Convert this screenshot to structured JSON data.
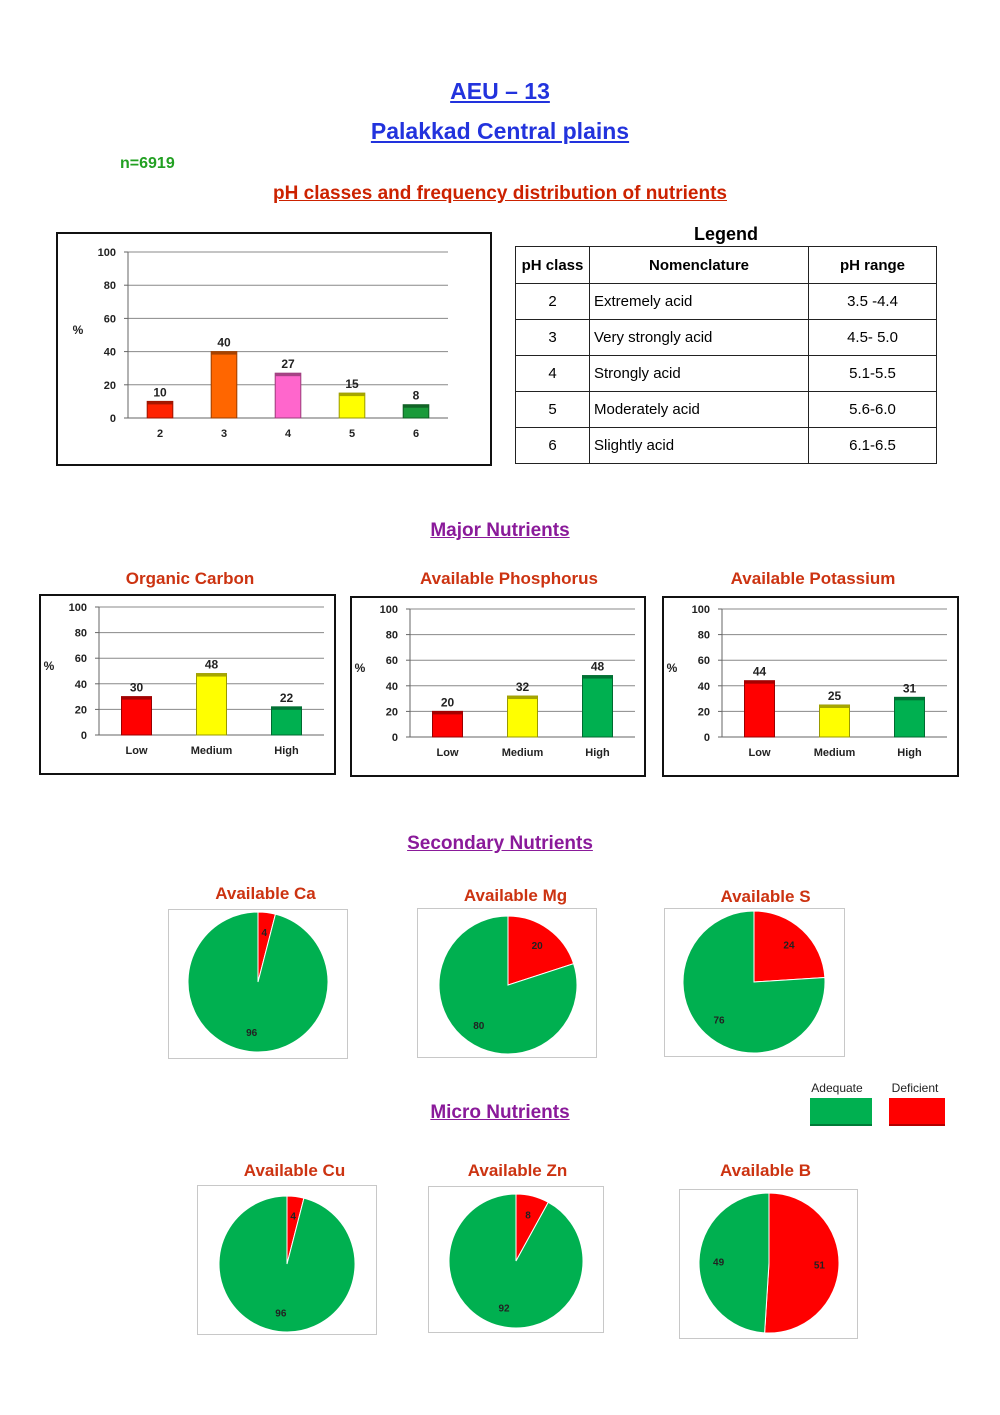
{
  "header": {
    "title": "AEU – 13",
    "subtitle": "Palakkad Central plains",
    "n_label": "n=6919",
    "section_ph": "pH classes and frequency distribution of nutrients"
  },
  "legend": {
    "title": "Legend",
    "headers": [
      "pH class",
      "Nomenclature",
      "pH range"
    ],
    "rows": [
      {
        "cls": "2",
        "name": "Extremely acid",
        "range": "3.5 -4.4"
      },
      {
        "cls": "3",
        "name": "Very strongly acid",
        "range": "4.5- 5.0"
      },
      {
        "cls": "4",
        "name": "Strongly acid",
        "range": "5.1-5.5"
      },
      {
        "cls": "5",
        "name": "Moderately acid",
        "range": "5.6-6.0"
      },
      {
        "cls": "6",
        "name": "Slightly acid",
        "range": "6.1-6.5"
      }
    ]
  },
  "sections": {
    "major": "Major Nutrients",
    "secondary": "Secondary Nutrients",
    "micro": "Micro Nutrients"
  },
  "pie_key": {
    "adequate_label": "Adequate",
    "deficient_label": "Deficient",
    "adequate_color": "#00b050",
    "deficient_color": "#ff0000"
  },
  "chart_data": [
    {
      "id": "ph",
      "type": "bar",
      "title": "",
      "ylabel": "%",
      "ylim": [
        0,
        100
      ],
      "yticks": [
        0,
        20,
        40,
        60,
        80,
        100
      ],
      "categories": [
        "2",
        "3",
        "4",
        "5",
        "6"
      ],
      "values": [
        10,
        40,
        27,
        15,
        8
      ],
      "colors": [
        "#ff2200",
        "#ff6600",
        "#ff66cc",
        "#ffff00",
        "#1a9a3a"
      ],
      "grid": true
    },
    {
      "id": "oc",
      "type": "bar",
      "title": "Organic Carbon",
      "ylabel": "%",
      "ylim": [
        0,
        100
      ],
      "yticks": [
        0,
        20,
        40,
        60,
        80,
        100
      ],
      "categories": [
        "Low",
        "Medium",
        "High"
      ],
      "values": [
        30,
        48,
        22
      ],
      "colors": [
        "#ff0000",
        "#ffff00",
        "#00b050"
      ],
      "grid": true
    },
    {
      "id": "p",
      "type": "bar",
      "title": "Available Phosphorus",
      "ylabel": "%",
      "ylim": [
        0,
        100
      ],
      "yticks": [
        0,
        20,
        40,
        60,
        80,
        100
      ],
      "categories": [
        "Low",
        "Medium",
        "High"
      ],
      "values": [
        20,
        32,
        48
      ],
      "colors": [
        "#ff0000",
        "#ffff00",
        "#00b050"
      ],
      "grid": true
    },
    {
      "id": "k",
      "type": "bar",
      "title": "Available Potassium",
      "ylabel": "%",
      "ylim": [
        0,
        100
      ],
      "yticks": [
        0,
        20,
        40,
        60,
        80,
        100
      ],
      "categories": [
        "Low",
        "Medium",
        "High"
      ],
      "values": [
        44,
        25,
        31
      ],
      "colors": [
        "#ff0000",
        "#ffff00",
        "#00b050"
      ],
      "grid": true
    },
    {
      "id": "ca",
      "type": "pie",
      "title": "Available Ca",
      "deficient": 4,
      "adequate": 96
    },
    {
      "id": "mg",
      "type": "pie",
      "title": "Available Mg",
      "deficient": 20,
      "adequate": 80
    },
    {
      "id": "s",
      "type": "pie",
      "title": "Available S",
      "deficient": 24,
      "adequate": 76
    },
    {
      "id": "cu",
      "type": "pie",
      "title": "Available Cu",
      "deficient": 4,
      "adequate": 96
    },
    {
      "id": "zn",
      "type": "pie",
      "title": "Available Zn",
      "deficient": 8,
      "adequate": 92
    },
    {
      "id": "b",
      "type": "pie",
      "title": "Available B",
      "deficient": 51,
      "adequate": 49
    }
  ]
}
